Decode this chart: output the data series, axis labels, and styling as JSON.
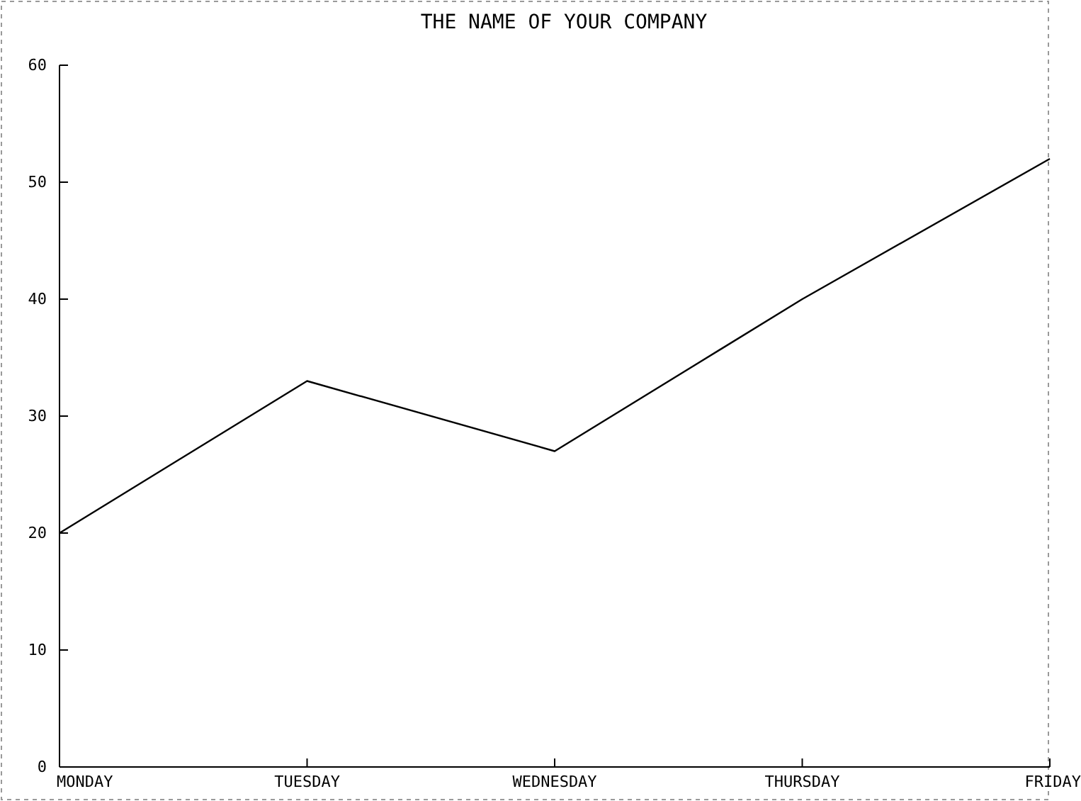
{
  "chart_data": {
    "type": "line",
    "title": "THE NAME OF YOUR COMPANY",
    "categories": [
      "MONDAY",
      "TUESDAY",
      "WEDNESDAY",
      "THURSDAY",
      "FRIDAY"
    ],
    "values": [
      20,
      33,
      27,
      40,
      52
    ],
    "color": "#000000",
    "ylim": [
      0,
      60
    ],
    "yticks": [
      0,
      10,
      20,
      30,
      40,
      50,
      60
    ],
    "grid": false,
    "marker": "none",
    "line_style": "solid"
  }
}
